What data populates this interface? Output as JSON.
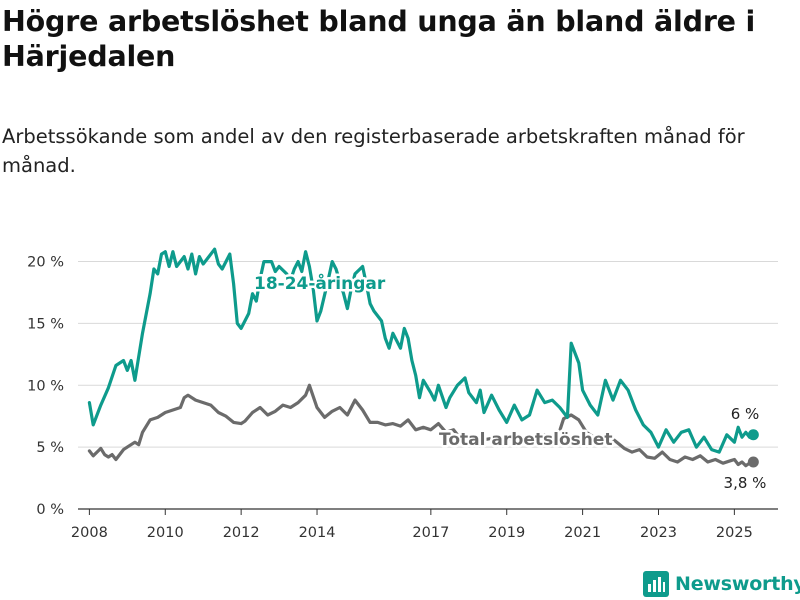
{
  "title": "Högre arbetslöshet bland unga än bland äldre i Härjedalen",
  "subtitle": "Arbetssökande som andel av den registerbaserade arbetskraften månad för månad.",
  "brand": {
    "name": "Newsworthy",
    "icon": "bar-chart-logo-icon"
  },
  "colors": {
    "young": "#0e9b8c",
    "total": "#6b6b6b",
    "grid": "#d9d9d9",
    "axis": "#333333"
  },
  "chart_data": {
    "type": "line",
    "x_unit": "year",
    "xlim": [
      2007.7,
      2026.15
    ],
    "ylim": [
      0,
      21.5
    ],
    "x_ticks": [
      2008,
      2010,
      2012,
      2014,
      2017,
      2019,
      2021,
      2023,
      2025
    ],
    "x_tick_labels": [
      "2008",
      "2010",
      "2012",
      "2014",
      "2017",
      "2019",
      "2021",
      "2023",
      "2025"
    ],
    "y_ticks": [
      0,
      5,
      10,
      15,
      20
    ],
    "y_tick_labels": [
      "0 %",
      "5 %",
      "10 %",
      "15 %",
      "20 %"
    ],
    "grid": true,
    "legend": "direct labels on lines",
    "series": [
      {
        "name": "18-24-åringar",
        "end_label": "6 %",
        "points": [
          [
            2008.0,
            8.6
          ],
          [
            2008.1,
            6.8
          ],
          [
            2008.3,
            8.4
          ],
          [
            2008.5,
            9.8
          ],
          [
            2008.7,
            11.6
          ],
          [
            2008.9,
            12.0
          ],
          [
            2009.0,
            11.2
          ],
          [
            2009.1,
            12.0
          ],
          [
            2009.2,
            10.4
          ],
          [
            2009.4,
            14.2
          ],
          [
            2009.6,
            17.4
          ],
          [
            2009.7,
            19.4
          ],
          [
            2009.8,
            19.0
          ],
          [
            2009.9,
            20.6
          ],
          [
            2010.0,
            20.8
          ],
          [
            2010.1,
            19.6
          ],
          [
            2010.2,
            20.8
          ],
          [
            2010.3,
            19.6
          ],
          [
            2010.5,
            20.4
          ],
          [
            2010.6,
            19.4
          ],
          [
            2010.7,
            20.6
          ],
          [
            2010.8,
            19.0
          ],
          [
            2010.9,
            20.4
          ],
          [
            2011.0,
            19.8
          ],
          [
            2011.1,
            20.2
          ],
          [
            2011.3,
            21.0
          ],
          [
            2011.4,
            19.8
          ],
          [
            2011.5,
            19.4
          ],
          [
            2011.7,
            20.6
          ],
          [
            2011.8,
            18.2
          ],
          [
            2011.9,
            15.0
          ],
          [
            2012.0,
            14.6
          ],
          [
            2012.2,
            15.8
          ],
          [
            2012.3,
            17.4
          ],
          [
            2012.4,
            16.8
          ],
          [
            2012.5,
            18.6
          ],
          [
            2012.6,
            20.0
          ],
          [
            2012.8,
            20.0
          ],
          [
            2012.9,
            19.2
          ],
          [
            2013.0,
            19.6
          ],
          [
            2013.2,
            19.0
          ],
          [
            2013.3,
            18.5
          ],
          [
            2013.4,
            19.4
          ],
          [
            2013.5,
            20.0
          ],
          [
            2013.6,
            19.2
          ],
          [
            2013.7,
            20.8
          ],
          [
            2013.8,
            19.6
          ],
          [
            2013.9,
            17.8
          ],
          [
            2014.0,
            15.2
          ],
          [
            2014.1,
            16.0
          ],
          [
            2014.3,
            18.6
          ],
          [
            2014.4,
            20.0
          ],
          [
            2014.5,
            19.4
          ],
          [
            2014.7,
            17.4
          ],
          [
            2014.8,
            16.2
          ],
          [
            2014.9,
            17.8
          ],
          [
            2015.0,
            19.0
          ],
          [
            2015.2,
            19.6
          ],
          [
            2015.3,
            18.2
          ],
          [
            2015.4,
            16.6
          ],
          [
            2015.5,
            16.0
          ],
          [
            2015.7,
            15.2
          ],
          [
            2015.8,
            13.8
          ],
          [
            2015.9,
            13.0
          ],
          [
            2016.0,
            14.2
          ],
          [
            2016.2,
            13.0
          ],
          [
            2016.3,
            14.6
          ],
          [
            2016.4,
            13.8
          ],
          [
            2016.5,
            12.0
          ],
          [
            2016.6,
            10.8
          ],
          [
            2016.7,
            9.0
          ],
          [
            2016.8,
            10.4
          ],
          [
            2017.0,
            9.4
          ],
          [
            2017.1,
            8.8
          ],
          [
            2017.2,
            10.0
          ],
          [
            2017.4,
            8.2
          ],
          [
            2017.5,
            9.0
          ],
          [
            2017.7,
            10.0
          ],
          [
            2017.9,
            10.6
          ],
          [
            2018.0,
            9.4
          ],
          [
            2018.2,
            8.6
          ],
          [
            2018.3,
            9.6
          ],
          [
            2018.4,
            7.8
          ],
          [
            2018.6,
            9.2
          ],
          [
            2018.8,
            8.0
          ],
          [
            2019.0,
            7.0
          ],
          [
            2019.2,
            8.4
          ],
          [
            2019.4,
            7.2
          ],
          [
            2019.6,
            7.6
          ],
          [
            2019.8,
            9.6
          ],
          [
            2020.0,
            8.6
          ],
          [
            2020.2,
            8.8
          ],
          [
            2020.4,
            8.2
          ],
          [
            2020.6,
            7.4
          ],
          [
            2020.7,
            13.4
          ],
          [
            2020.9,
            11.8
          ],
          [
            2021.0,
            9.6
          ],
          [
            2021.2,
            8.4
          ],
          [
            2021.4,
            7.6
          ],
          [
            2021.6,
            10.4
          ],
          [
            2021.8,
            8.8
          ],
          [
            2022.0,
            10.4
          ],
          [
            2022.2,
            9.6
          ],
          [
            2022.4,
            8.0
          ],
          [
            2022.6,
            6.8
          ],
          [
            2022.8,
            6.2
          ],
          [
            2023.0,
            5.0
          ],
          [
            2023.2,
            6.4
          ],
          [
            2023.4,
            5.4
          ],
          [
            2023.6,
            6.2
          ],
          [
            2023.8,
            6.4
          ],
          [
            2024.0,
            5.0
          ],
          [
            2024.2,
            5.8
          ],
          [
            2024.4,
            4.8
          ],
          [
            2024.6,
            4.6
          ],
          [
            2024.8,
            6.0
          ],
          [
            2025.0,
            5.4
          ],
          [
            2025.1,
            6.6
          ],
          [
            2025.2,
            5.8
          ],
          [
            2025.3,
            6.2
          ],
          [
            2025.4,
            5.8
          ],
          [
            2025.5,
            6.0
          ]
        ]
      },
      {
        "name": "Total arbetslöshet",
        "end_label": "3,8 %",
        "points": [
          [
            2008.0,
            4.7
          ],
          [
            2008.1,
            4.3
          ],
          [
            2008.2,
            4.6
          ],
          [
            2008.3,
            4.9
          ],
          [
            2008.4,
            4.4
          ],
          [
            2008.5,
            4.2
          ],
          [
            2008.6,
            4.4
          ],
          [
            2008.7,
            4.0
          ],
          [
            2008.9,
            4.8
          ],
          [
            2009.0,
            5.0
          ],
          [
            2009.2,
            5.4
          ],
          [
            2009.3,
            5.2
          ],
          [
            2009.4,
            6.2
          ],
          [
            2009.6,
            7.2
          ],
          [
            2009.8,
            7.4
          ],
          [
            2010.0,
            7.8
          ],
          [
            2010.2,
            8.0
          ],
          [
            2010.4,
            8.2
          ],
          [
            2010.5,
            9.0
          ],
          [
            2010.6,
            9.2
          ],
          [
            2010.8,
            8.8
          ],
          [
            2011.0,
            8.6
          ],
          [
            2011.2,
            8.4
          ],
          [
            2011.4,
            7.8
          ],
          [
            2011.6,
            7.5
          ],
          [
            2011.8,
            7.0
          ],
          [
            2012.0,
            6.9
          ],
          [
            2012.1,
            7.1
          ],
          [
            2012.3,
            7.8
          ],
          [
            2012.5,
            8.2
          ],
          [
            2012.7,
            7.6
          ],
          [
            2012.9,
            7.9
          ],
          [
            2013.1,
            8.4
          ],
          [
            2013.3,
            8.2
          ],
          [
            2013.5,
            8.6
          ],
          [
            2013.7,
            9.2
          ],
          [
            2013.8,
            10.0
          ],
          [
            2014.0,
            8.2
          ],
          [
            2014.2,
            7.4
          ],
          [
            2014.4,
            7.9
          ],
          [
            2014.6,
            8.2
          ],
          [
            2014.8,
            7.6
          ],
          [
            2015.0,
            8.8
          ],
          [
            2015.2,
            8.0
          ],
          [
            2015.4,
            7.0
          ],
          [
            2015.6,
            7.0
          ],
          [
            2015.8,
            6.8
          ],
          [
            2016.0,
            6.9
          ],
          [
            2016.2,
            6.7
          ],
          [
            2016.4,
            7.2
          ],
          [
            2016.6,
            6.4
          ],
          [
            2016.8,
            6.6
          ],
          [
            2017.0,
            6.4
          ],
          [
            2017.2,
            6.9
          ],
          [
            2017.4,
            6.2
          ],
          [
            2017.6,
            6.4
          ],
          [
            2017.8,
            5.6
          ],
          [
            2018.0,
            5.8
          ],
          [
            2018.4,
            5.6
          ],
          [
            2018.8,
            5.8
          ],
          [
            2019.2,
            5.6
          ],
          [
            2019.6,
            5.8
          ],
          [
            2020.0,
            6.0
          ],
          [
            2020.3,
            5.4
          ],
          [
            2020.5,
            7.3
          ],
          [
            2020.7,
            7.6
          ],
          [
            2020.9,
            7.2
          ],
          [
            2021.1,
            6.2
          ],
          [
            2021.3,
            5.8
          ],
          [
            2021.5,
            5.6
          ],
          [
            2021.7,
            5.9
          ],
          [
            2021.9,
            5.4
          ],
          [
            2022.1,
            4.9
          ],
          [
            2022.3,
            4.6
          ],
          [
            2022.5,
            4.8
          ],
          [
            2022.7,
            4.2
          ],
          [
            2022.9,
            4.1
          ],
          [
            2023.1,
            4.6
          ],
          [
            2023.3,
            4.0
          ],
          [
            2023.5,
            3.8
          ],
          [
            2023.7,
            4.2
          ],
          [
            2023.9,
            4.0
          ],
          [
            2024.1,
            4.3
          ],
          [
            2024.3,
            3.8
          ],
          [
            2024.5,
            4.0
          ],
          [
            2024.7,
            3.7
          ],
          [
            2024.9,
            3.9
          ],
          [
            2025.0,
            4.0
          ],
          [
            2025.1,
            3.6
          ],
          [
            2025.2,
            3.8
          ],
          [
            2025.3,
            3.5
          ],
          [
            2025.4,
            3.7
          ],
          [
            2025.5,
            3.8
          ]
        ]
      }
    ]
  }
}
